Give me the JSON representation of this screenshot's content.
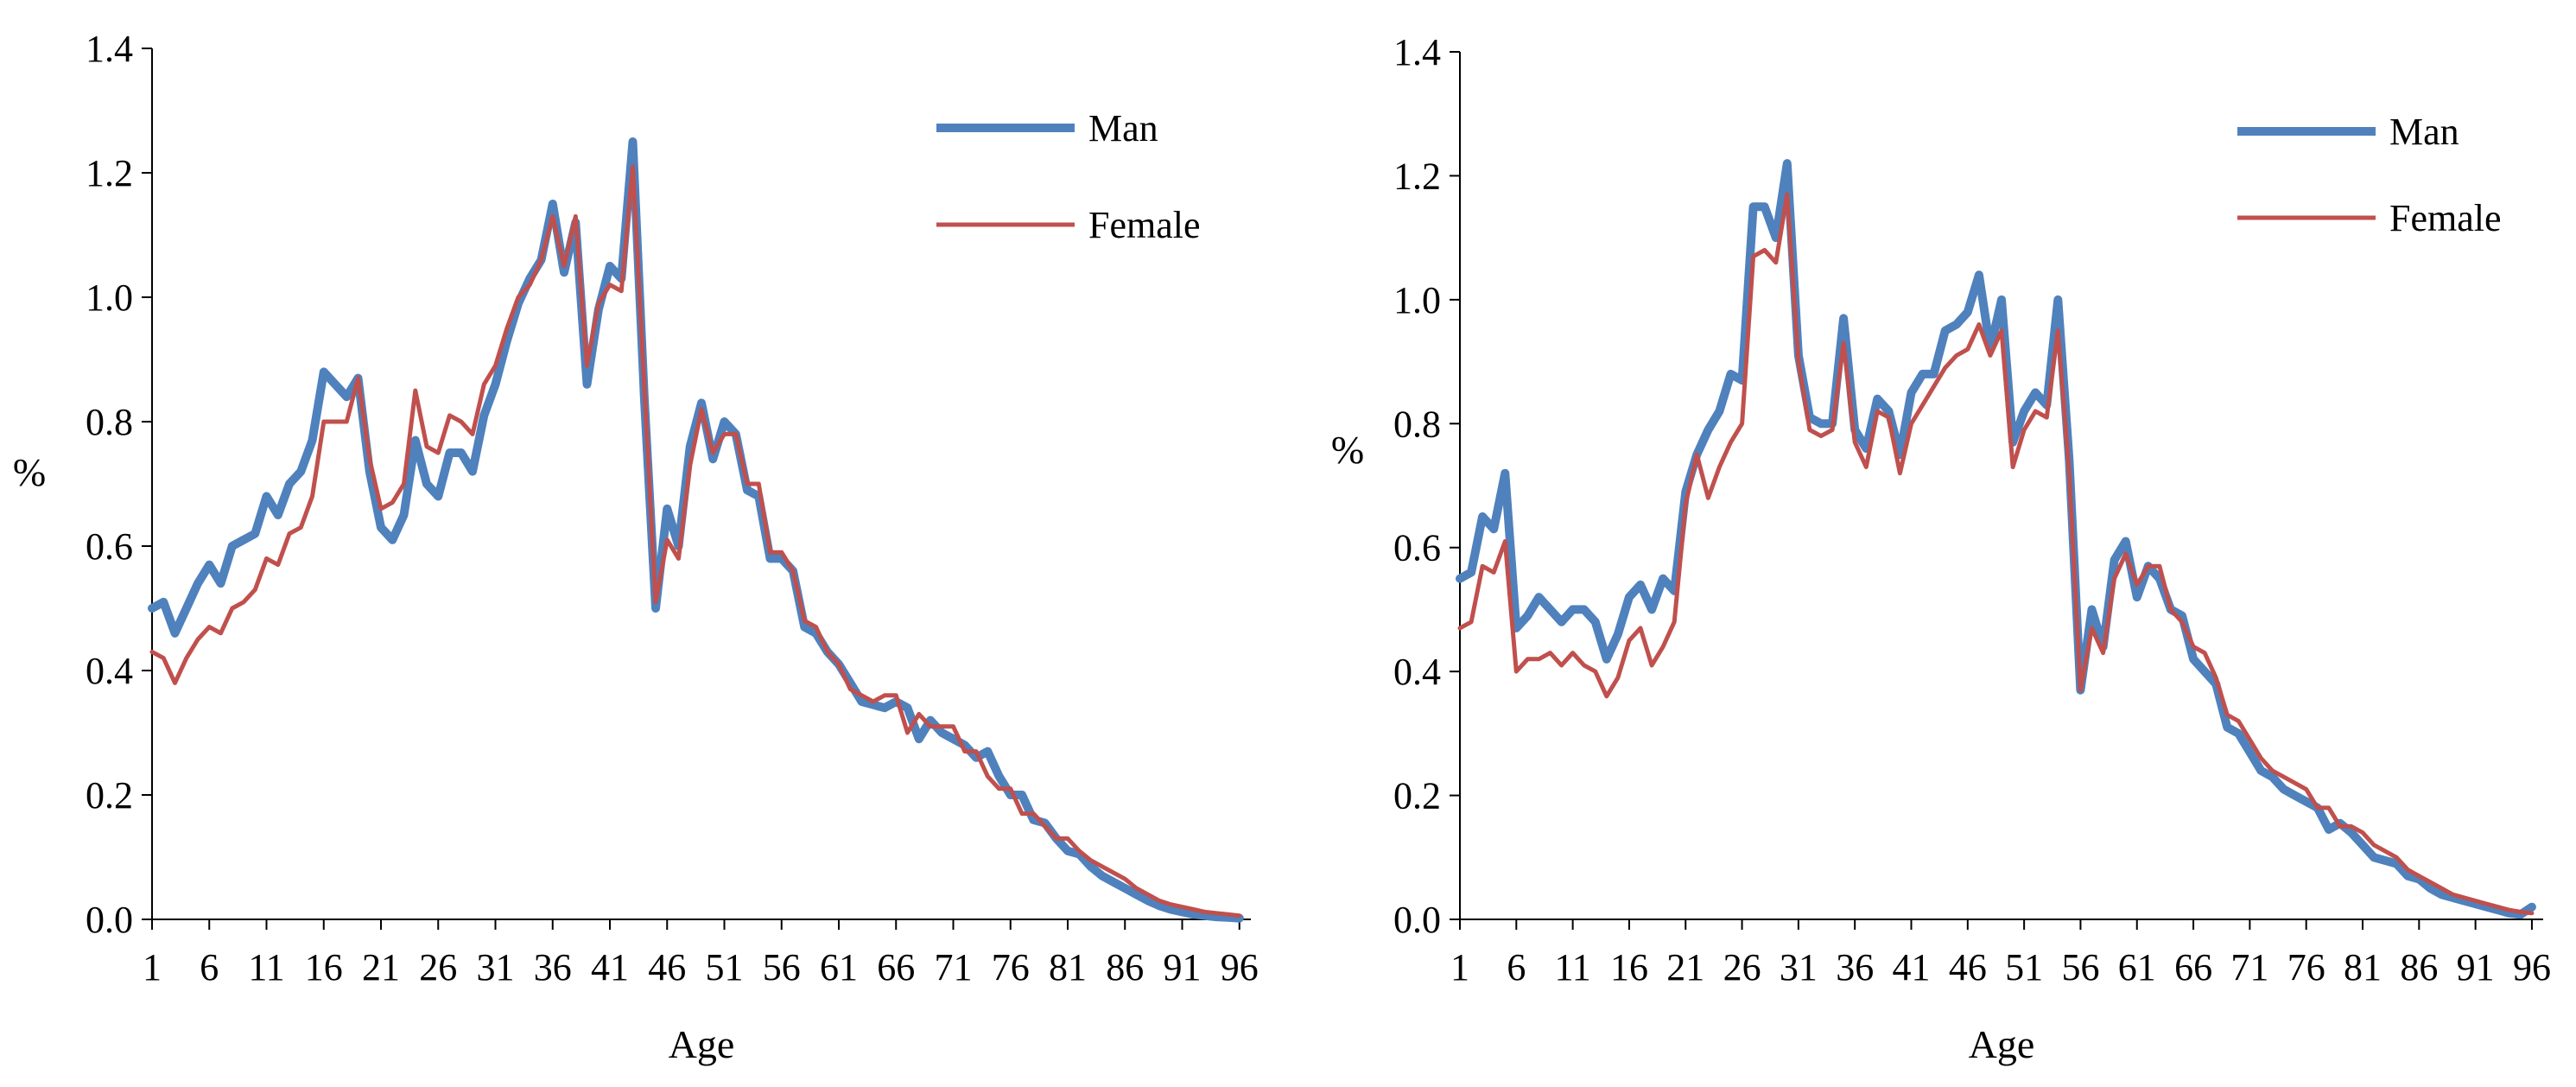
{
  "chart_data": [
    {
      "type": "line",
      "title": "",
      "xlabel": "Age",
      "ylabel": "%",
      "ylim": [
        0,
        1.4
      ],
      "yticks": [
        "0.0",
        "0.2",
        "0.4",
        "0.6",
        "0.8",
        "1.0",
        "1.2",
        "1.4"
      ],
      "xticks": [
        "1",
        "6",
        "11",
        "16",
        "21",
        "26",
        "31",
        "36",
        "41",
        "46",
        "51",
        "56",
        "61",
        "66",
        "71",
        "76",
        "81",
        "86",
        "91",
        "96"
      ],
      "legend_position": "top-right",
      "series": [
        {
          "name": "Man",
          "color": "#4f81bd",
          "x": [
            1,
            2,
            3,
            4,
            5,
            6,
            7,
            8,
            9,
            10,
            11,
            12,
            13,
            14,
            15,
            16,
            17,
            18,
            19,
            20,
            21,
            22,
            23,
            24,
            25,
            26,
            27,
            28,
            29,
            30,
            31,
            32,
            33,
            34,
            35,
            36,
            37,
            38,
            39,
            40,
            41,
            42,
            43,
            44,
            45,
            46,
            47,
            48,
            49,
            50,
            51,
            52,
            53,
            54,
            55,
            56,
            57,
            58,
            59,
            60,
            61,
            62,
            63,
            64,
            65,
            66,
            67,
            68,
            69,
            70,
            71,
            72,
            73,
            74,
            75,
            76,
            77,
            78,
            79,
            80,
            81,
            82,
            83,
            84,
            85,
            86,
            87,
            88,
            89,
            90,
            91,
            92,
            93,
            94,
            95,
            96
          ],
          "values": [
            0.5,
            0.51,
            0.46,
            0.5,
            0.54,
            0.57,
            0.54,
            0.6,
            0.61,
            0.62,
            0.68,
            0.65,
            0.7,
            0.72,
            0.77,
            0.88,
            0.86,
            0.84,
            0.87,
            0.72,
            0.63,
            0.61,
            0.65,
            0.77,
            0.7,
            0.68,
            0.75,
            0.75,
            0.72,
            0.81,
            0.86,
            0.93,
            0.99,
            1.03,
            1.06,
            1.15,
            1.04,
            1.12,
            0.86,
            0.98,
            1.05,
            1.03,
            1.25,
            0.84,
            0.5,
            0.66,
            0.6,
            0.76,
            0.83,
            0.74,
            0.8,
            0.78,
            0.69,
            0.68,
            0.58,
            0.58,
            0.56,
            0.47,
            0.46,
            0.43,
            0.41,
            0.38,
            0.35,
            0.345,
            0.34,
            0.35,
            0.34,
            0.29,
            0.32,
            0.3,
            0.29,
            0.28,
            0.26,
            0.27,
            0.23,
            0.2,
            0.2,
            0.16,
            0.155,
            0.13,
            0.11,
            0.105,
            0.085,
            0.07,
            0.06,
            0.05,
            0.04,
            0.03,
            0.022,
            0.016,
            0.012,
            0.008,
            0.006,
            0.004,
            0.003,
            0.002
          ]
        },
        {
          "name": "Female",
          "color": "#c0504d",
          "x": [
            1,
            2,
            3,
            4,
            5,
            6,
            7,
            8,
            9,
            10,
            11,
            12,
            13,
            14,
            15,
            16,
            17,
            18,
            19,
            20,
            21,
            22,
            23,
            24,
            25,
            26,
            27,
            28,
            29,
            30,
            31,
            32,
            33,
            34,
            35,
            36,
            37,
            38,
            39,
            40,
            41,
            42,
            43,
            44,
            45,
            46,
            47,
            48,
            49,
            50,
            51,
            52,
            53,
            54,
            55,
            56,
            57,
            58,
            59,
            60,
            61,
            62,
            63,
            64,
            65,
            66,
            67,
            68,
            69,
            70,
            71,
            72,
            73,
            74,
            75,
            76,
            77,
            78,
            79,
            80,
            81,
            82,
            83,
            84,
            85,
            86,
            87,
            88,
            89,
            90,
            91,
            92,
            93,
            94,
            95,
            96
          ],
          "values": [
            0.43,
            0.42,
            0.38,
            0.42,
            0.45,
            0.47,
            0.46,
            0.5,
            0.51,
            0.53,
            0.58,
            0.57,
            0.62,
            0.63,
            0.68,
            0.8,
            0.8,
            0.8,
            0.87,
            0.74,
            0.66,
            0.67,
            0.7,
            0.85,
            0.76,
            0.75,
            0.81,
            0.8,
            0.78,
            0.86,
            0.89,
            0.95,
            1.0,
            1.02,
            1.06,
            1.13,
            1.05,
            1.13,
            0.89,
            0.99,
            1.02,
            1.01,
            1.21,
            0.86,
            0.51,
            0.61,
            0.58,
            0.73,
            0.82,
            0.75,
            0.78,
            0.78,
            0.7,
            0.7,
            0.59,
            0.59,
            0.56,
            0.48,
            0.47,
            0.43,
            0.41,
            0.37,
            0.36,
            0.35,
            0.36,
            0.36,
            0.3,
            0.33,
            0.31,
            0.31,
            0.31,
            0.27,
            0.27,
            0.23,
            0.21,
            0.21,
            0.17,
            0.17,
            0.15,
            0.13,
            0.13,
            0.11,
            0.095,
            0.085,
            0.075,
            0.065,
            0.05,
            0.04,
            0.03,
            0.024,
            0.02,
            0.016,
            0.012,
            0.01,
            0.008,
            0.006
          ]
        }
      ]
    },
    {
      "type": "line",
      "title": "",
      "xlabel": "Age",
      "ylabel": "%",
      "ylim": [
        0,
        1.4
      ],
      "yticks": [
        "0.0",
        "0.2",
        "0.4",
        "0.6",
        "0.8",
        "1.0",
        "1.2",
        "1.4"
      ],
      "xticks": [
        "1",
        "6",
        "11",
        "16",
        "21",
        "26",
        "31",
        "36",
        "41",
        "46",
        "51",
        "56",
        "61",
        "66",
        "71",
        "76",
        "81",
        "86",
        "91",
        "96"
      ],
      "legend_position": "top-right",
      "series": [
        {
          "name": "Man",
          "color": "#4f81bd",
          "x": [
            1,
            2,
            3,
            4,
            5,
            6,
            7,
            8,
            9,
            10,
            11,
            12,
            13,
            14,
            15,
            16,
            17,
            18,
            19,
            20,
            21,
            22,
            23,
            24,
            25,
            26,
            27,
            28,
            29,
            30,
            31,
            32,
            33,
            34,
            35,
            36,
            37,
            38,
            39,
            40,
            41,
            42,
            43,
            44,
            45,
            46,
            47,
            48,
            49,
            50,
            51,
            52,
            53,
            54,
            55,
            56,
            57,
            58,
            59,
            60,
            61,
            62,
            63,
            64,
            65,
            66,
            67,
            68,
            69,
            70,
            71,
            72,
            73,
            74,
            75,
            76,
            77,
            78,
            79,
            80,
            81,
            82,
            83,
            84,
            85,
            86,
            87,
            88,
            89,
            90,
            91,
            92,
            93,
            94,
            95,
            96
          ],
          "values": [
            0.55,
            0.56,
            0.65,
            0.63,
            0.72,
            0.47,
            0.49,
            0.52,
            0.5,
            0.48,
            0.5,
            0.5,
            0.48,
            0.42,
            0.46,
            0.52,
            0.54,
            0.5,
            0.55,
            0.53,
            0.69,
            0.75,
            0.79,
            0.82,
            0.88,
            0.87,
            1.15,
            1.15,
            1.1,
            1.22,
            0.91,
            0.81,
            0.8,
            0.8,
            0.97,
            0.79,
            0.76,
            0.84,
            0.82,
            0.75,
            0.85,
            0.88,
            0.88,
            0.95,
            0.96,
            0.98,
            1.04,
            0.92,
            1.0,
            0.77,
            0.82,
            0.85,
            0.83,
            1.0,
            0.74,
            0.37,
            0.5,
            0.44,
            0.58,
            0.61,
            0.52,
            0.57,
            0.55,
            0.5,
            0.49,
            0.42,
            0.4,
            0.38,
            0.31,
            0.3,
            0.27,
            0.24,
            0.23,
            0.21,
            0.2,
            0.19,
            0.18,
            0.145,
            0.155,
            0.14,
            0.12,
            0.1,
            0.095,
            0.09,
            0.07,
            0.065,
            0.05,
            0.04,
            0.035,
            0.03,
            0.025,
            0.02,
            0.015,
            0.01,
            0.008,
            0.02
          ]
        },
        {
          "name": "Female",
          "color": "#c0504d",
          "x": [
            1,
            2,
            3,
            4,
            5,
            6,
            7,
            8,
            9,
            10,
            11,
            12,
            13,
            14,
            15,
            16,
            17,
            18,
            19,
            20,
            21,
            22,
            23,
            24,
            25,
            26,
            27,
            28,
            29,
            30,
            31,
            32,
            33,
            34,
            35,
            36,
            37,
            38,
            39,
            40,
            41,
            42,
            43,
            44,
            45,
            46,
            47,
            48,
            49,
            50,
            51,
            52,
            53,
            54,
            55,
            56,
            57,
            58,
            59,
            60,
            61,
            62,
            63,
            64,
            65,
            66,
            67,
            68,
            69,
            70,
            71,
            72,
            73,
            74,
            75,
            76,
            77,
            78,
            79,
            80,
            81,
            82,
            83,
            84,
            85,
            86,
            87,
            88,
            89,
            90,
            91,
            92,
            93,
            94,
            95,
            96
          ],
          "values": [
            0.47,
            0.48,
            0.57,
            0.56,
            0.61,
            0.4,
            0.42,
            0.42,
            0.43,
            0.41,
            0.43,
            0.41,
            0.4,
            0.36,
            0.39,
            0.45,
            0.47,
            0.41,
            0.44,
            0.48,
            0.67,
            0.75,
            0.68,
            0.73,
            0.77,
            0.8,
            1.07,
            1.08,
            1.06,
            1.17,
            0.9,
            0.79,
            0.78,
            0.79,
            0.93,
            0.77,
            0.73,
            0.82,
            0.81,
            0.72,
            0.8,
            0.83,
            0.86,
            0.89,
            0.91,
            0.92,
            0.96,
            0.91,
            0.95,
            0.73,
            0.79,
            0.82,
            0.81,
            0.95,
            0.72,
            0.37,
            0.47,
            0.43,
            0.55,
            0.59,
            0.54,
            0.57,
            0.57,
            0.5,
            0.48,
            0.44,
            0.43,
            0.39,
            0.33,
            0.32,
            0.29,
            0.26,
            0.24,
            0.23,
            0.22,
            0.21,
            0.18,
            0.18,
            0.15,
            0.15,
            0.14,
            0.12,
            0.11,
            0.1,
            0.08,
            0.07,
            0.06,
            0.05,
            0.04,
            0.035,
            0.03,
            0.025,
            0.02,
            0.015,
            0.012,
            0.01
          ]
        }
      ]
    }
  ]
}
